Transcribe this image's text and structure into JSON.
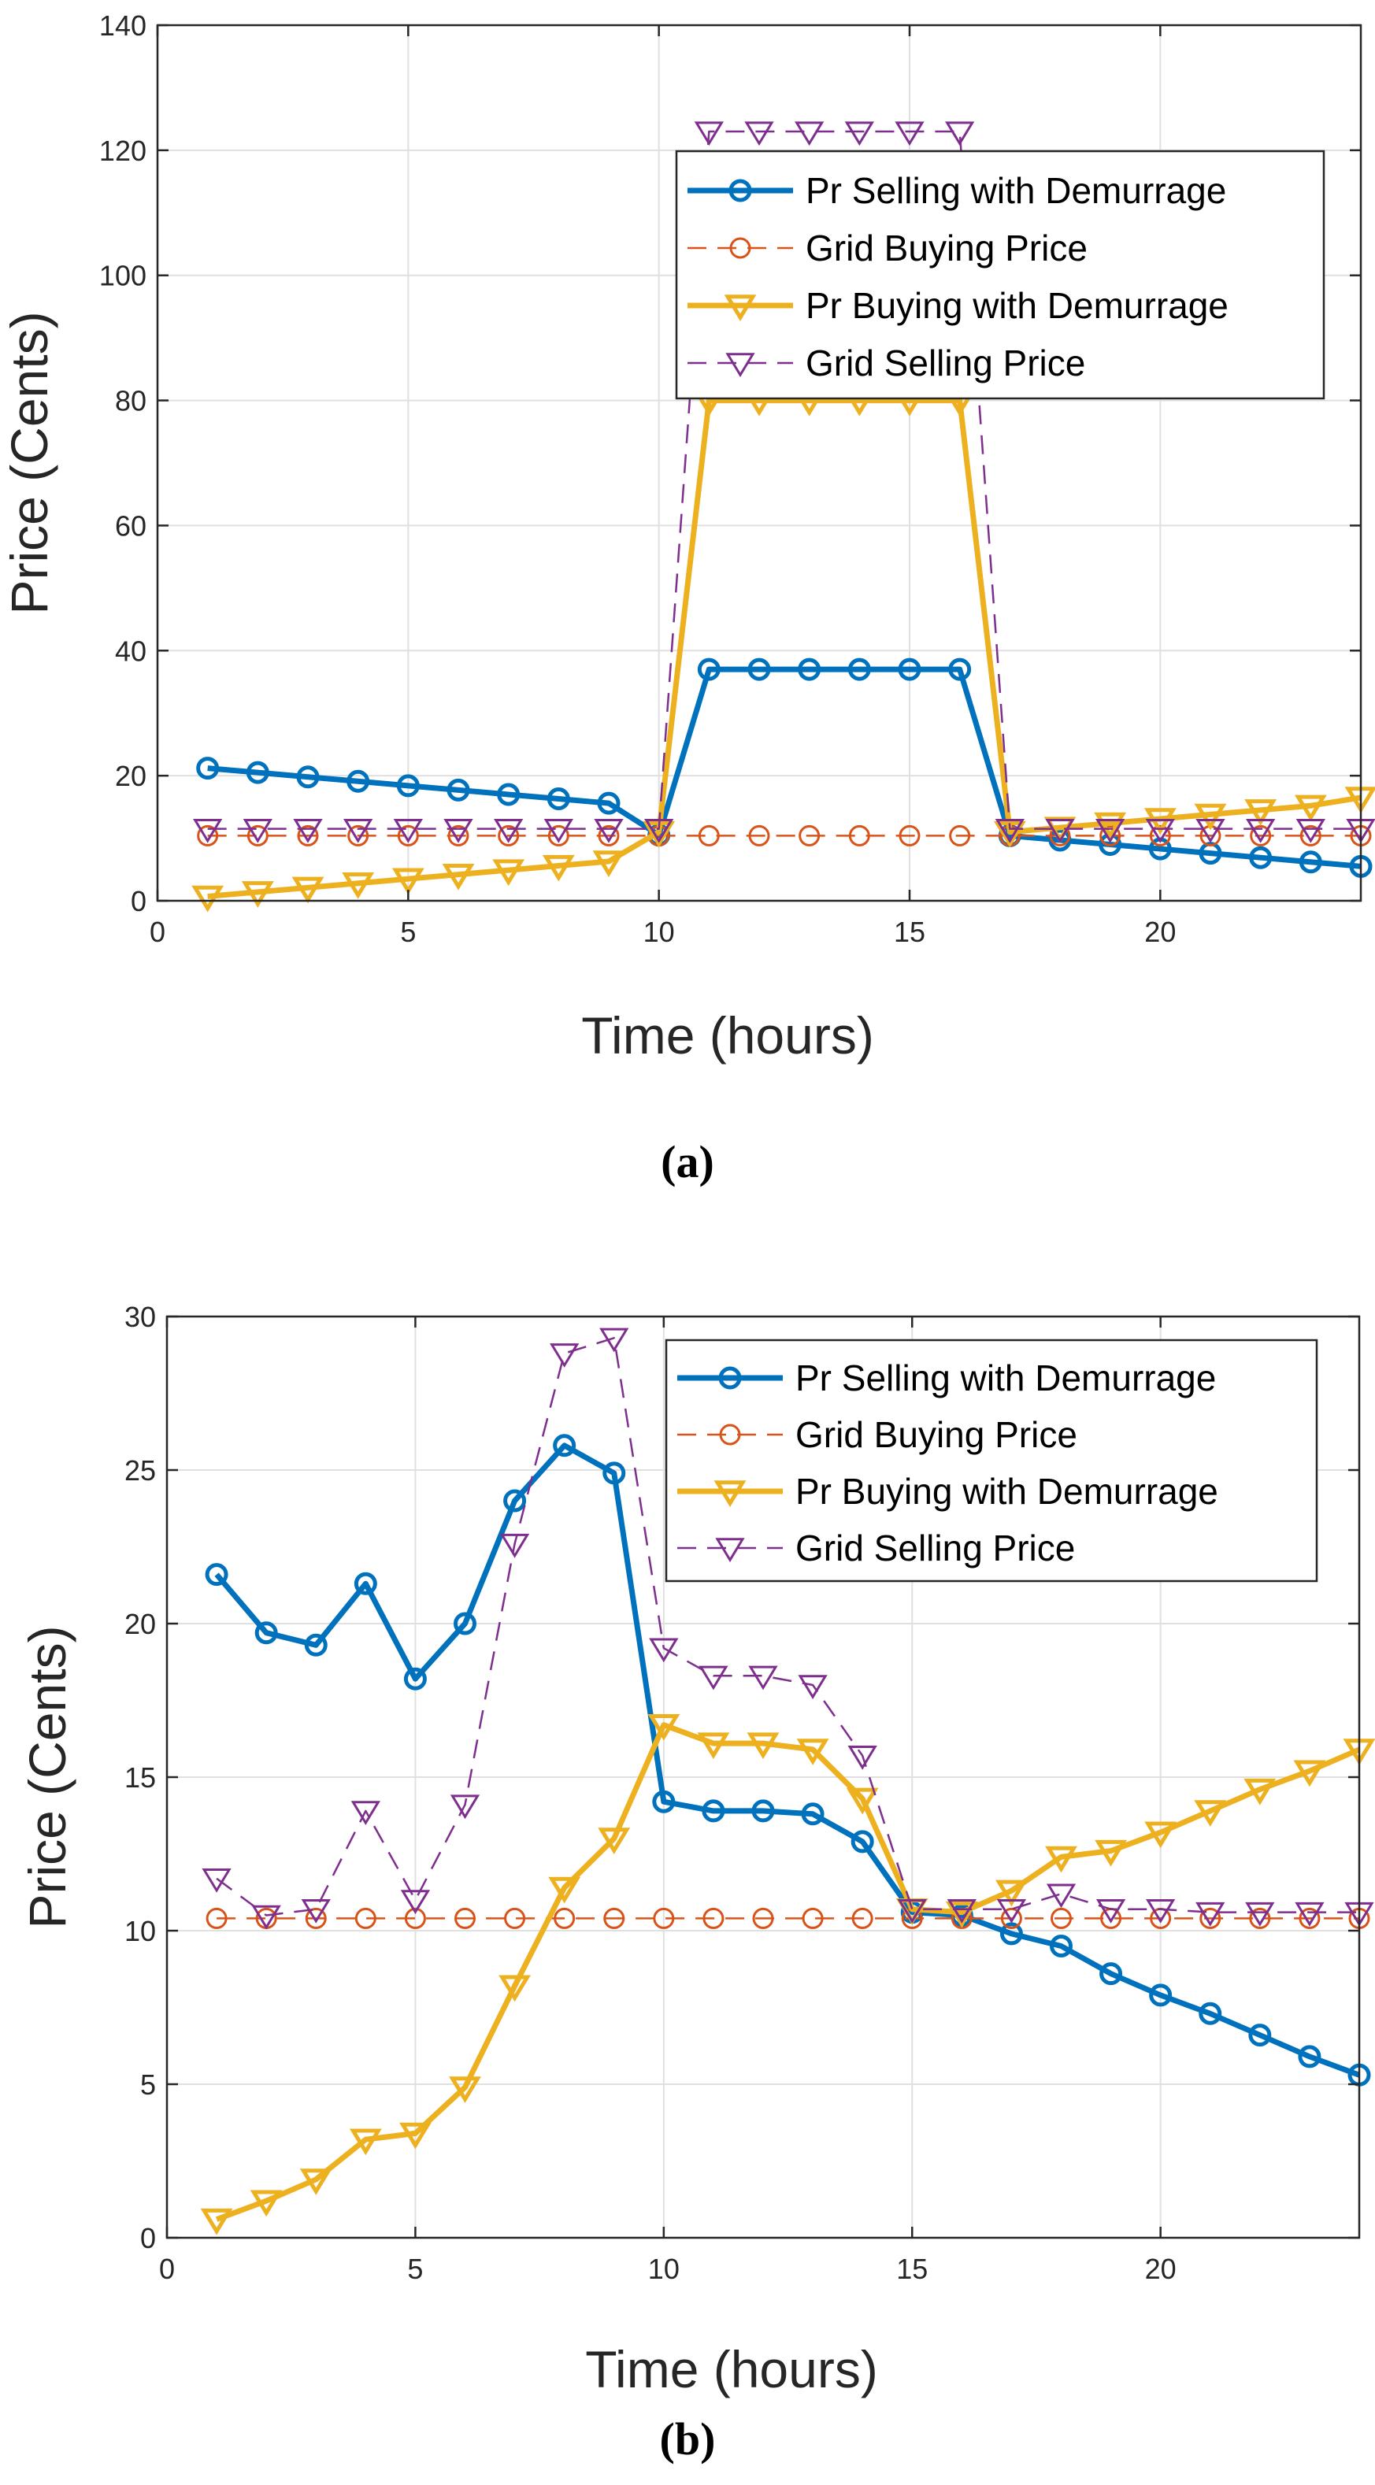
{
  "colors": {
    "pr_selling": "#0072BD",
    "grid_buying": "#D95319",
    "pr_buying": "#EDB120",
    "grid_selling": "#7E2F8E",
    "grid_lines": "#e0e0e0",
    "axis": "#262626"
  },
  "chart_data": [
    {
      "type": "line",
      "panel_label": "(a)",
      "xlabel": "Time (hours)",
      "ylabel": "Price (Cents)",
      "xlim": [
        0,
        24
      ],
      "ylim": [
        0,
        140
      ],
      "xticks": [
        0,
        5,
        10,
        15,
        20
      ],
      "yticks": [
        0,
        20,
        40,
        60,
        80,
        100,
        120,
        140
      ],
      "grid": true,
      "legend_position": "top-right",
      "x": [
        1,
        2,
        3,
        4,
        5,
        6,
        7,
        8,
        9,
        10,
        11,
        12,
        13,
        14,
        15,
        16,
        17,
        18,
        19,
        20,
        21,
        22,
        23,
        24
      ],
      "series": [
        {
          "name": "Pr Selling with Demurrage",
          "color_key": "pr_selling",
          "line": "solid",
          "marker": "circle",
          "values": [
            21.2,
            20.5,
            19.8,
            19.1,
            18.4,
            17.7,
            17.0,
            16.3,
            15.6,
            10.5,
            37.0,
            37.0,
            37.0,
            37.0,
            37.0,
            37.0,
            10.4,
            9.7,
            9.0,
            8.3,
            7.6,
            6.9,
            6.2,
            5.5
          ]
        },
        {
          "name": "Grid Buying Price",
          "color_key": "grid_buying",
          "line": "dashed",
          "marker": "circle",
          "values": [
            10.4,
            10.4,
            10.4,
            10.4,
            10.4,
            10.4,
            10.4,
            10.4,
            10.4,
            10.4,
            10.4,
            10.4,
            10.4,
            10.4,
            10.4,
            10.4,
            10.4,
            10.4,
            10.4,
            10.4,
            10.4,
            10.4,
            10.4,
            10.4
          ]
        },
        {
          "name": "Pr Buying with Demurrage",
          "color_key": "pr_buying",
          "line": "solid",
          "marker": "triangle-down",
          "values": [
            0.7,
            1.4,
            2.1,
            2.8,
            3.5,
            4.2,
            4.9,
            5.6,
            6.3,
            11.0,
            80.0,
            80.0,
            80.0,
            80.0,
            80.0,
            80.0,
            11.0,
            11.7,
            12.4,
            13.1,
            13.8,
            14.5,
            15.2,
            16.5
          ]
        },
        {
          "name": "Grid Selling Price",
          "color_key": "grid_selling",
          "line": "dashed",
          "marker": "triangle-down",
          "values": [
            11.5,
            11.5,
            11.5,
            11.5,
            11.5,
            11.5,
            11.5,
            11.5,
            11.5,
            11.5,
            123.0,
            123.0,
            123.0,
            123.0,
            123.0,
            123.0,
            11.5,
            11.5,
            11.5,
            11.5,
            11.5,
            11.5,
            11.5,
            11.5
          ]
        }
      ]
    },
    {
      "type": "line",
      "panel_label": "(b)",
      "xlabel": "Time (hours)",
      "ylabel": "Price (Cents)",
      "xlim": [
        0,
        24
      ],
      "ylim": [
        0,
        30
      ],
      "xticks": [
        0,
        5,
        10,
        15,
        20
      ],
      "yticks": [
        0,
        5,
        10,
        15,
        20,
        25,
        30
      ],
      "grid": true,
      "legend_position": "top-right",
      "x": [
        1,
        2,
        3,
        4,
        5,
        6,
        7,
        8,
        9,
        10,
        11,
        12,
        13,
        14,
        15,
        16,
        17,
        18,
        19,
        20,
        21,
        22,
        23,
        24
      ],
      "series": [
        {
          "name": "Pr Selling with Demurrage",
          "color_key": "pr_selling",
          "line": "solid",
          "marker": "circle",
          "values": [
            21.6,
            19.7,
            19.3,
            21.3,
            18.2,
            20.0,
            24.0,
            25.8,
            24.9,
            14.2,
            13.9,
            13.9,
            13.8,
            12.9,
            10.6,
            10.5,
            9.9,
            9.5,
            8.6,
            7.9,
            7.3,
            6.6,
            5.9,
            5.3
          ]
        },
        {
          "name": "Grid Buying Price",
          "color_key": "grid_buying",
          "line": "dashed",
          "marker": "circle",
          "values": [
            10.4,
            10.4,
            10.4,
            10.4,
            10.4,
            10.4,
            10.4,
            10.4,
            10.4,
            10.4,
            10.4,
            10.4,
            10.4,
            10.4,
            10.4,
            10.4,
            10.4,
            10.4,
            10.4,
            10.4,
            10.4,
            10.4,
            10.4,
            10.4
          ]
        },
        {
          "name": "Pr Buying with Demurrage",
          "color_key": "pr_buying",
          "line": "solid",
          "marker": "triangle-down",
          "values": [
            0.6,
            1.2,
            1.9,
            3.2,
            3.4,
            4.9,
            8.2,
            11.4,
            13.0,
            16.7,
            16.1,
            16.1,
            15.9,
            14.3,
            10.7,
            10.6,
            11.3,
            12.4,
            12.6,
            13.2,
            13.9,
            14.6,
            15.2,
            15.9
          ]
        },
        {
          "name": "Grid Selling Price",
          "color_key": "grid_selling",
          "line": "dashed",
          "marker": "triangle-down",
          "values": [
            11.7,
            10.5,
            10.7,
            13.9,
            11.0,
            14.1,
            22.6,
            28.8,
            29.3,
            19.2,
            18.3,
            18.3,
            18.0,
            15.7,
            10.7,
            10.7,
            10.7,
            11.2,
            10.7,
            10.7,
            10.6,
            10.6,
            10.6,
            10.6
          ]
        }
      ]
    }
  ]
}
